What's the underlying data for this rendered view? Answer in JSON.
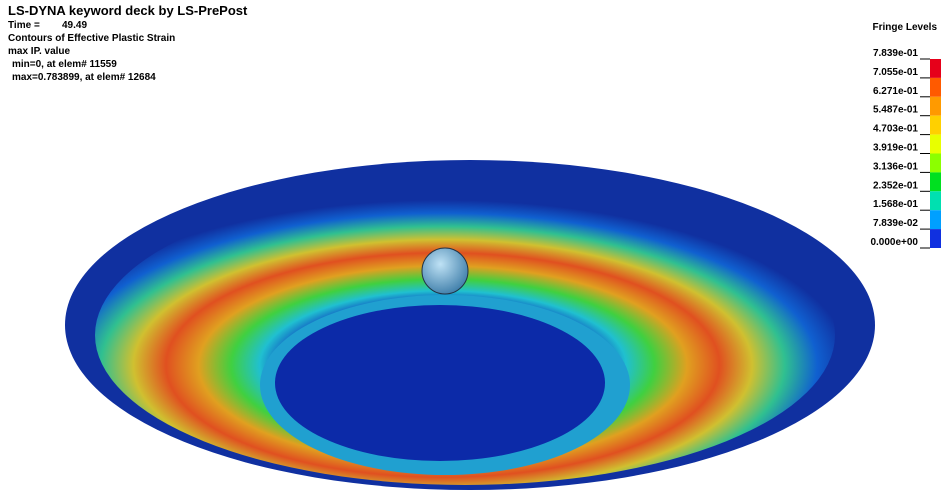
{
  "header": {
    "title": "LS-DYNA keyword deck by LS-PrePost",
    "time_label": "Time =",
    "time_value": "49.49",
    "contour": "Contours of Effective Plastic Strain",
    "ip": "max IP. value",
    "min": "min=0, at elem# 11559",
    "max": "max=0.783899, at elem# 12684"
  },
  "legend": {
    "title": "Fringe Levels",
    "levels": [
      "7.839e-01",
      "7.055e-01",
      "6.271e-01",
      "5.487e-01",
      "4.703e-01",
      "3.919e-01",
      "3.136e-01",
      "2.352e-01",
      "1.568e-01",
      "7.839e-02",
      "0.000e+00"
    ],
    "colors": [
      "#e6001a",
      "#ff5a00",
      "#ff9a00",
      "#ffd000",
      "#e8ff00",
      "#8cff00",
      "#00e020",
      "#00e0b0",
      "#00a0ff",
      "#1030e0"
    ]
  }
}
